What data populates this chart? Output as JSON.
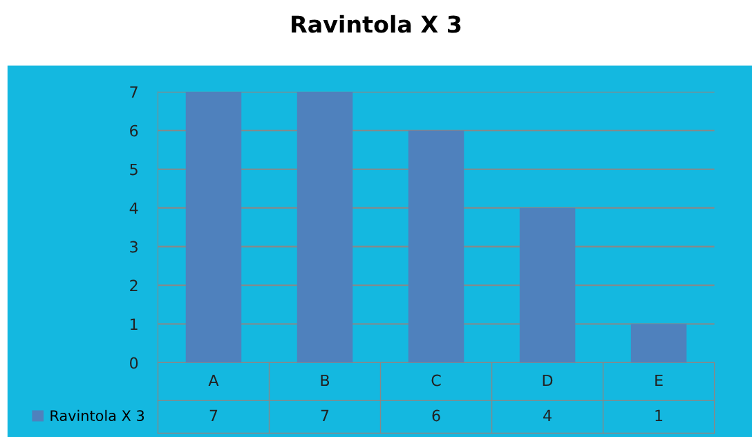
{
  "chart_data": {
    "type": "bar",
    "title": "Ravintola X 3",
    "categories": [
      "A",
      "B",
      "C",
      "D",
      "E"
    ],
    "series": [
      {
        "name": "Ravintola X 3",
        "color": "#4f81bd",
        "values": [
          7,
          7,
          6,
          4,
          1
        ]
      }
    ],
    "ylim": [
      0,
      7
    ],
    "yticks": [
      0,
      1,
      2,
      3,
      4,
      5,
      6,
      7
    ],
    "grid": "y",
    "data_labels": true,
    "legend": "bottom"
  }
}
